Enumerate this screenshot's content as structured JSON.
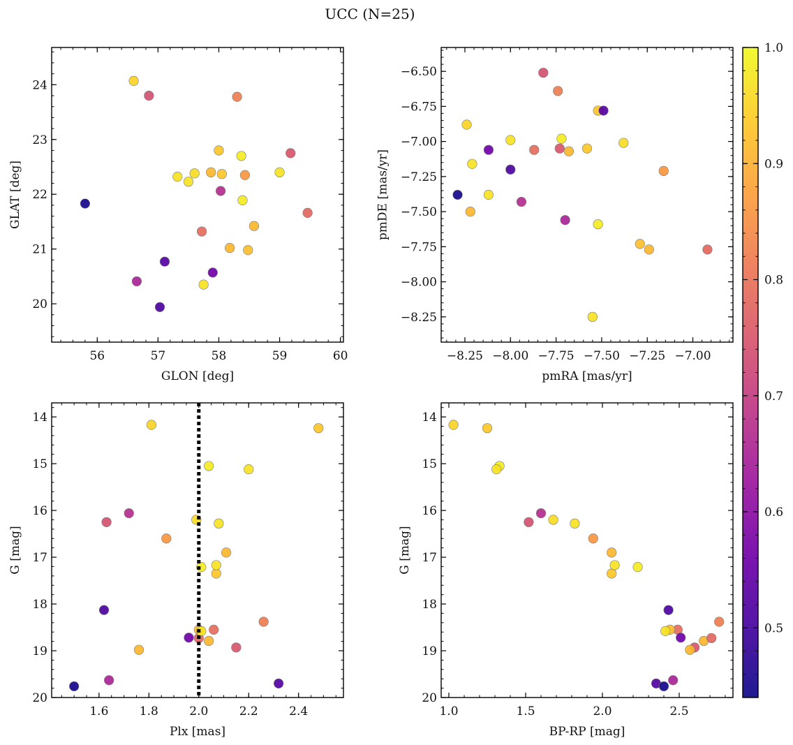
{
  "title": "UCC (N=25)",
  "colormap": {
    "name": "plasma",
    "range": [
      0.44,
      1.0
    ],
    "ticks": [
      0.5,
      0.6,
      0.7,
      0.8,
      0.9,
      1.0
    ],
    "tick_labels": [
      "0.5",
      "0.6",
      "0.7",
      "0.8",
      "0.9",
      "1.0"
    ],
    "stops": [
      "#0d0887",
      "#46039f",
      "#7201a8",
      "#9c179e",
      "#bd3786",
      "#d8576b",
      "#ed7953",
      "#fb9f3a",
      "#fdca26",
      "#f0f921"
    ]
  },
  "points": [
    {
      "glon": 56.6,
      "glat": 24.07,
      "pmra": -8.24,
      "pmde": -6.88,
      "plx": 1.81,
      "g": 14.17,
      "bprp": 1.03,
      "p": 0.95
    },
    {
      "glon": 56.85,
      "glat": 23.8,
      "pmra": -7.82,
      "pmde": -6.51,
      "plx": 1.63,
      "g": 16.25,
      "bprp": 1.52,
      "p": 0.74
    },
    {
      "glon": 58.3,
      "glat": 23.78,
      "pmra": -7.74,
      "pmde": -6.64,
      "plx": 2.26,
      "g": 18.38,
      "bprp": 2.76,
      "p": 0.82
    },
    {
      "glon": 58.0,
      "glat": 22.8,
      "pmra": -7.52,
      "pmde": -6.78,
      "plx": 2.48,
      "g": 14.24,
      "bprp": 1.25,
      "p": 0.93
    },
    {
      "glon": 58.37,
      "glat": 22.7,
      "pmra": -7.72,
      "pmde": -6.98,
      "plx": 2.04,
      "g": 15.05,
      "bprp": 1.33,
      "p": 0.98
    },
    {
      "glon": 59.18,
      "glat": 22.75,
      "pmra": -7.73,
      "pmde": -7.05,
      "plx": 2.15,
      "g": 18.93,
      "bprp": 2.6,
      "p": 0.75
    },
    {
      "glon": 57.32,
      "glat": 22.32,
      "pmra": -8.0,
      "pmde": -6.99,
      "plx": 2.2,
      "g": 15.12,
      "bprp": 1.31,
      "p": 0.97
    },
    {
      "glon": 57.6,
      "glat": 22.38,
      "pmra": -7.38,
      "pmde": -7.01,
      "plx": 1.99,
      "g": 16.2,
      "bprp": 1.68,
      "p": 0.96
    },
    {
      "glon": 57.5,
      "glat": 22.23,
      "pmra": -8.21,
      "pmde": -7.16,
      "plx": 2.08,
      "g": 16.28,
      "bprp": 1.82,
      "p": 0.97
    },
    {
      "glon": 57.87,
      "glat": 22.4,
      "pmra": -7.68,
      "pmde": -7.07,
      "plx": 2.11,
      "g": 16.9,
      "bprp": 2.06,
      "p": 0.91
    },
    {
      "glon": 58.05,
      "glat": 22.37,
      "pmra": -7.58,
      "pmde": -7.05,
      "plx": 2.07,
      "g": 17.35,
      "bprp": 2.06,
      "p": 0.93
    },
    {
      "glon": 58.43,
      "glat": 22.35,
      "pmra": -7.16,
      "pmde": -7.21,
      "plx": 1.87,
      "g": 16.6,
      "bprp": 1.94,
      "p": 0.86
    },
    {
      "glon": 59.0,
      "glat": 22.4,
      "pmra": -8.12,
      "pmde": -7.38,
      "plx": 2.07,
      "g": 17.17,
      "bprp": 2.08,
      "p": 0.97
    },
    {
      "glon": 58.39,
      "glat": 21.89,
      "pmra": -7.52,
      "pmde": -7.59,
      "plx": 2.01,
      "g": 17.21,
      "bprp": 2.23,
      "p": 0.98
    },
    {
      "glon": 57.72,
      "glat": 21.32,
      "pmra": -7.87,
      "pmde": -7.06,
      "plx": 2.06,
      "g": 18.55,
      "bprp": 2.49,
      "p": 0.79
    },
    {
      "glon": 58.58,
      "glat": 21.42,
      "pmra": -8.22,
      "pmde": -7.5,
      "plx": 2.04,
      "g": 18.79,
      "bprp": 2.66,
      "p": 0.91
    },
    {
      "glon": 58.48,
      "glat": 20.98,
      "pmra": -7.29,
      "pmde": -7.73,
      "plx": 2.0,
      "g": 18.55,
      "bprp": 2.44,
      "p": 0.92
    },
    {
      "glon": 58.18,
      "glat": 21.02,
      "pmra": -7.24,
      "pmde": -7.77,
      "plx": 1.76,
      "g": 18.98,
      "bprp": 2.57,
      "p": 0.91
    },
    {
      "glon": 59.46,
      "glat": 21.66,
      "pmra": -6.92,
      "pmde": -7.77,
      "plx": 2.0,
      "g": 18.73,
      "bprp": 2.71,
      "p": 0.78
    },
    {
      "glon": 57.75,
      "glat": 20.35,
      "pmra": -7.55,
      "pmde": -8.25,
      "plx": 2.01,
      "g": 18.58,
      "bprp": 2.41,
      "p": 0.97
    },
    {
      "glon": 58.03,
      "glat": 22.06,
      "pmra": -7.94,
      "pmde": -7.43,
      "plx": 1.72,
      "g": 16.06,
      "bprp": 1.6,
      "p": 0.67
    },
    {
      "glon": 56.65,
      "glat": 20.41,
      "pmra": -7.7,
      "pmde": -7.56,
      "plx": 1.64,
      "g": 19.63,
      "bprp": 2.46,
      "p": 0.65
    },
    {
      "glon": 57.9,
      "glat": 20.57,
      "pmra": -8.12,
      "pmde": -7.06,
      "plx": 1.96,
      "g": 18.72,
      "bprp": 2.51,
      "p": 0.56
    },
    {
      "glon": 57.11,
      "glat": 20.77,
      "pmra": -7.49,
      "pmde": -6.78,
      "plx": 2.32,
      "g": 19.7,
      "bprp": 2.35,
      "p": 0.52
    },
    {
      "glon": 57.03,
      "glat": 19.94,
      "pmra": -8.0,
      "pmde": -7.2,
      "plx": 1.62,
      "g": 18.13,
      "bprp": 2.43,
      "p": 0.51
    },
    {
      "glon": 55.8,
      "glat": 21.83,
      "pmra": -8.29,
      "pmde": -7.38,
      "plx": 1.5,
      "g": 19.76,
      "bprp": 2.4,
      "p": 0.45
    }
  ],
  "chart_data": [
    {
      "type": "scatter",
      "xlabel": "GLON [deg]",
      "ylabel": "GLAT [deg]",
      "xkey": "glon",
      "ykey": "glat",
      "xlim": [
        55.25,
        60.05
      ],
      "ylim": [
        19.3,
        24.68
      ],
      "xticks": [
        56,
        57,
        58,
        59,
        60
      ],
      "yticks": [
        20,
        21,
        22,
        23,
        24
      ],
      "xticklabels": [
        "56",
        "57",
        "58",
        "59",
        "60"
      ],
      "yticklabels": [
        "20",
        "21",
        "22",
        "23",
        "24"
      ],
      "xminor": 0.2,
      "yminor": 0.2,
      "invert_y": false
    },
    {
      "type": "scatter",
      "xlabel": "pmRA [mas/yr]",
      "ylabel": "pmDE [mas/yr]",
      "xkey": "pmra",
      "ykey": "pmde",
      "xlim": [
        -8.38,
        -6.78
      ],
      "ylim": [
        -8.43,
        -6.33
      ],
      "xticks": [
        -8.25,
        -8.0,
        -7.75,
        -7.5,
        -7.25,
        -7.0
      ],
      "yticks": [
        -8.25,
        -8.0,
        -7.75,
        -7.5,
        -7.25,
        -7.0,
        -6.75,
        -6.5
      ],
      "xticklabels": [
        "−8.25",
        "−8.00",
        "−7.75",
        "−7.50",
        "−7.25",
        "−7.00"
      ],
      "yticklabels": [
        "−8.25",
        "−8.00",
        "−7.75",
        "−7.50",
        "−7.25",
        "−7.00",
        "−6.75",
        "−6.50"
      ],
      "xminor": 0.05,
      "yminor": 0.05,
      "invert_y": false
    },
    {
      "type": "scatter",
      "xlabel": "Plx [mas]",
      "ylabel": "G [mag]",
      "xkey": "plx",
      "ykey": "g",
      "xlim": [
        1.41,
        2.58
      ],
      "ylim": [
        13.7,
        20.0
      ],
      "xticks": [
        1.6,
        1.8,
        2.0,
        2.2,
        2.4
      ],
      "yticks": [
        14,
        15,
        16,
        17,
        18,
        19,
        20
      ],
      "xticklabels": [
        "1.6",
        "1.8",
        "2.0",
        "2.2",
        "2.4"
      ],
      "yticklabels": [
        "14",
        "15",
        "16",
        "17",
        "18",
        "19",
        "20"
      ],
      "xminor": 0.05,
      "yminor": 0.2,
      "invert_y": true,
      "vline": 2.0
    },
    {
      "type": "scatter",
      "xlabel": "BP-RP [mag]",
      "ylabel": "G [mag]",
      "xkey": "bprp",
      "ykey": "g",
      "xlim": [
        0.95,
        2.85
      ],
      "ylim": [
        13.7,
        20.0
      ],
      "xticks": [
        1.0,
        1.5,
        2.0,
        2.5
      ],
      "yticks": [
        14,
        15,
        16,
        17,
        18,
        19,
        20
      ],
      "xticklabels": [
        "1.0",
        "1.5",
        "2.0",
        "2.5"
      ],
      "yticklabels": [
        "14",
        "15",
        "16",
        "17",
        "18",
        "19",
        "20"
      ],
      "xminor": 0.1,
      "yminor": 0.2,
      "invert_y": true
    }
  ]
}
